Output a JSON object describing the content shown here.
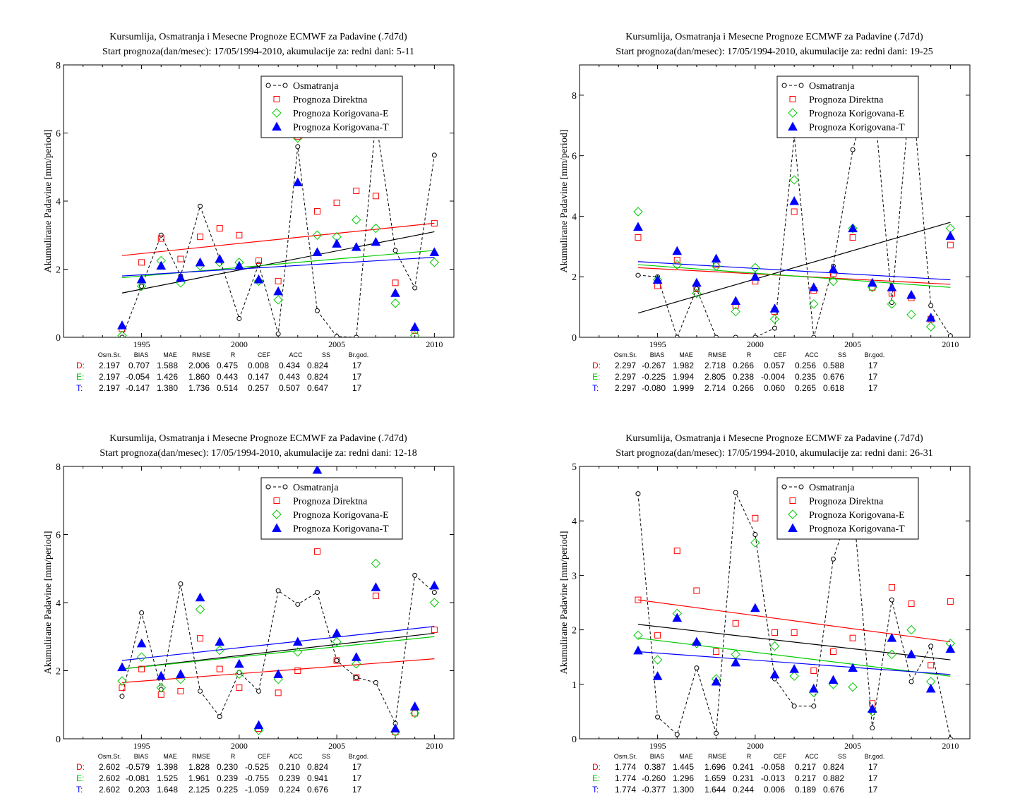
{
  "colors": {
    "obs": "#000000",
    "direct": "#ff0000",
    "corr_e": "#00cc00",
    "corr_t": "#0000ff"
  },
  "legend": {
    "obs": "Osmatranja",
    "direct": "Prognoza Direktna",
    "corr_e": "Prognoza Korigovana-E",
    "corr_t": "Prognoza Korigovana-T"
  },
  "stats_header": [
    "Osm.Sr.",
    "BIAS",
    "MAE",
    "RMSE",
    "R",
    "CEF",
    "ACC",
    "SS",
    "Br.god."
  ],
  "chart_data": [
    {
      "type": "scatter",
      "title": "Kursumlija, Osmatranja i Mesecne Prognoze ECMWF za Padavine (.7d7d)",
      "subtitle": "Start prognoza(dan/mesec): 17/05/1994-2010, akumulacije za: redni dani: 5-11",
      "ylabel": "Akumulirane Padavine [mm/period]",
      "xlim": [
        1991,
        2011
      ],
      "ylim": [
        0,
        8
      ],
      "xticks": [
        1995,
        2000,
        2005,
        2010
      ],
      "yticks": [
        0,
        2,
        4,
        6,
        8
      ],
      "legend": "top-right",
      "x": [
        1994,
        1995,
        1996,
        1997,
        1998,
        1999,
        2000,
        2001,
        2002,
        2003,
        2004,
        2005,
        2006,
        2007,
        2008,
        2009,
        2010
      ],
      "series": [
        {
          "name": "Osmatranja",
          "values": [
            0.0,
            1.5,
            3.0,
            1.8,
            3.85,
            2.3,
            0.55,
            2.15,
            0.1,
            5.6,
            0.78,
            0.02,
            0.0,
            6.4,
            2.55,
            1.45,
            5.35
          ]
        },
        {
          "name": "Prognoza Direktna",
          "values": [
            0.25,
            2.2,
            2.9,
            2.3,
            2.95,
            3.2,
            3.0,
            2.25,
            1.65,
            5.9,
            3.7,
            3.95,
            4.3,
            4.15,
            1.6,
            0.2,
            3.35
          ]
        },
        {
          "name": "Prognoza Korigovana-E",
          "values": [
            0.05,
            1.5,
            2.25,
            1.6,
            2.1,
            2.2,
            2.2,
            1.65,
            1.1,
            5.85,
            3.0,
            2.95,
            3.45,
            3.2,
            1.0,
            0.05,
            2.2
          ]
        },
        {
          "name": "Prognoza Korigovana-T",
          "values": [
            0.35,
            1.7,
            2.1,
            1.75,
            2.2,
            2.3,
            2.1,
            1.7,
            1.35,
            4.55,
            2.5,
            2.75,
            2.65,
            2.8,
            1.3,
            0.3,
            2.5
          ]
        }
      ],
      "trends": [
        [
          1.3,
          3.1
        ],
        [
          2.4,
          3.35
        ],
        [
          1.75,
          2.55
        ],
        [
          1.8,
          2.35
        ]
      ],
      "stats": [
        {
          "label": "D:",
          "values": [
            "2.197",
            "0.707",
            "1.588",
            "2.006",
            "0.475",
            "0.008",
            "0.434",
            "0.824",
            "17"
          ]
        },
        {
          "label": "E:",
          "values": [
            "2.197",
            "-0.054",
            "1.426",
            "1.860",
            "0.443",
            "0.147",
            "0.443",
            "0.824",
            "17"
          ]
        },
        {
          "label": "T:",
          "values": [
            "2.197",
            "-0.147",
            "1.380",
            "1.736",
            "0.514",
            "0.257",
            "0.507",
            "0.647",
            "17"
          ]
        }
      ]
    },
    {
      "type": "scatter",
      "title": "Kursumlija, Osmatranja i Mesecne Prognoze ECMWF za Padavine (.7d7d)",
      "subtitle": "Start prognoza(dan/mesec): 17/05/1994-2010, akumulacije za: redni dani: 19-25",
      "ylabel": "Akumulirane Padavine [mm/period]",
      "xlim": [
        1991,
        2011
      ],
      "ylim": [
        0,
        9
      ],
      "xticks": [
        1995,
        2000,
        2005,
        2010
      ],
      "yticks": [
        0,
        2,
        4,
        6,
        8
      ],
      "legend": "top-right",
      "x": [
        1994,
        1995,
        1996,
        1997,
        1998,
        1999,
        2000,
        2001,
        2002,
        2003,
        2004,
        2005,
        2006,
        2007,
        2008,
        2009,
        2010
      ],
      "series": [
        {
          "name": "Osmatranja",
          "values": [
            2.05,
            2.0,
            0.0,
            1.6,
            0.0,
            0.0,
            0.0,
            0.3,
            6.65,
            0.0,
            2.35,
            6.2,
            8.5,
            1.15,
            8.5,
            1.05,
            0.05
          ]
        },
        {
          "name": "Prognoza Direktna",
          "values": [
            3.3,
            1.7,
            2.55,
            1.6,
            2.4,
            1.05,
            1.85,
            0.85,
            4.15,
            1.55,
            2.1,
            3.3,
            1.65,
            1.45,
            1.3,
            0.6,
            3.05
          ]
        },
        {
          "name": "Prognoza Korigovana-E",
          "values": [
            4.15,
            1.9,
            2.4,
            1.45,
            2.35,
            0.85,
            2.3,
            0.6,
            5.2,
            1.1,
            1.85,
            3.6,
            1.65,
            1.1,
            0.75,
            0.35,
            3.6
          ]
        },
        {
          "name": "Prognoza Korigovana-T",
          "values": [
            3.65,
            1.9,
            2.85,
            1.8,
            2.6,
            1.2,
            2.0,
            0.95,
            4.5,
            1.65,
            2.25,
            3.6,
            1.8,
            1.65,
            1.4,
            0.65,
            3.35
          ]
        }
      ],
      "trends": [
        [
          0.8,
          3.8
        ],
        [
          2.3,
          1.75
        ],
        [
          2.4,
          1.65
        ],
        [
          2.5,
          1.9
        ]
      ],
      "stats": [
        {
          "label": "D:",
          "values": [
            "2.297",
            "-0.267",
            "1.982",
            "2.718",
            "0.266",
            "0.057",
            "0.256",
            "0.588",
            "17"
          ]
        },
        {
          "label": "E:",
          "values": [
            "2.297",
            "-0.225",
            "1.994",
            "2.805",
            "0.238",
            "-0.004",
            "0.235",
            "0.676",
            "17"
          ]
        },
        {
          "label": "T:",
          "values": [
            "2.297",
            "-0.080",
            "1.999",
            "2.714",
            "0.266",
            "0.060",
            "0.265",
            "0.618",
            "17"
          ]
        }
      ]
    },
    {
      "type": "scatter",
      "title": "Kursumlija, Osmatranja i Mesecne Prognoze ECMWF za Padavine (.7d7d)",
      "subtitle": "Start prognoza(dan/mesec): 17/05/1994-2010, akumulacije za: redni dani: 12-18",
      "ylabel": "Akumulirane Padavine [mm/period]",
      "xlim": [
        1991,
        2011
      ],
      "ylim": [
        0,
        8
      ],
      "xticks": [
        1995,
        2000,
        2005,
        2010
      ],
      "yticks": [
        0,
        2,
        4,
        6,
        8
      ],
      "legend": "top-right",
      "x": [
        1994,
        1995,
        1996,
        1997,
        1998,
        1999,
        2000,
        2001,
        2002,
        2003,
        2004,
        2005,
        2006,
        2007,
        2008,
        2009,
        2010
      ],
      "series": [
        {
          "name": "Osmatranja",
          "values": [
            1.25,
            3.7,
            1.45,
            4.55,
            1.4,
            0.65,
            1.95,
            1.4,
            4.35,
            3.95,
            4.3,
            2.3,
            1.8,
            1.65,
            0.45,
            4.8,
            4.3
          ]
        },
        {
          "name": "Prognoza Direktna",
          "values": [
            1.5,
            2.05,
            1.3,
            1.4,
            2.95,
            2.05,
            1.5,
            0.3,
            1.35,
            2.0,
            5.5,
            2.3,
            1.8,
            4.2,
            0.2,
            0.75,
            3.2
          ]
        },
        {
          "name": "Prognoza Korigovana-E",
          "values": [
            1.7,
            2.4,
            1.5,
            1.75,
            3.8,
            2.6,
            1.9,
            0.25,
            1.75,
            2.55,
            8.1,
            2.85,
            2.2,
            5.15,
            0.2,
            0.75,
            4.0
          ]
        },
        {
          "name": "Prognoza Korigovana-T",
          "values": [
            2.1,
            2.8,
            1.85,
            1.9,
            4.15,
            2.85,
            2.2,
            0.4,
            1.9,
            2.85,
            7.9,
            3.1,
            2.4,
            4.45,
            0.3,
            0.95,
            4.5
          ]
        }
      ],
      "trends": [
        [
          2.05,
          3.1
        ],
        [
          1.65,
          2.35
        ],
        [
          2.05,
          3.0
        ],
        [
          2.3,
          3.3
        ]
      ],
      "stats": [
        {
          "label": "D:",
          "values": [
            "2.602",
            "-0.579",
            "1.398",
            "1.828",
            "0.230",
            "-0.525",
            "0.210",
            "0.824",
            "17"
          ]
        },
        {
          "label": "E:",
          "values": [
            "2.602",
            "-0.081",
            "1.525",
            "1.961",
            "0.239",
            "-0.755",
            "0.239",
            "0.941",
            "17"
          ]
        },
        {
          "label": "T:",
          "values": [
            "2.602",
            "0.203",
            "1.648",
            "2.125",
            "0.225",
            "-1.059",
            "0.224",
            "0.676",
            "17"
          ]
        }
      ]
    },
    {
      "type": "scatter",
      "title": "Kursumlija, Osmatranja i Mesecne Prognoze ECMWF za Padavine (.7d7d)",
      "subtitle": "Start prognoza(dan/mesec): 17/05/1994-2010, akumulacije za: redni dani: 26-31",
      "ylabel": "Akumulirane Padavine [mm/period]",
      "xlim": [
        1991,
        2011
      ],
      "ylim": [
        0,
        5
      ],
      "xticks": [
        1995,
        2000,
        2005,
        2010
      ],
      "yticks": [
        0,
        1,
        2,
        3,
        4,
        5
      ],
      "legend": "top-right",
      "x": [
        1994,
        1995,
        1996,
        1997,
        1998,
        1999,
        2000,
        2001,
        2002,
        2003,
        2004,
        2005,
        2006,
        2007,
        2008,
        2009,
        2010
      ],
      "series": [
        {
          "name": "Osmatranja",
          "values": [
            4.5,
            0.4,
            0.08,
            1.3,
            0.1,
            4.52,
            3.75,
            1.1,
            0.6,
            0.6,
            3.3,
            4.4,
            0.2,
            2.55,
            1.05,
            1.7,
            0.0
          ]
        },
        {
          "name": "Prognoza Direktna",
          "values": [
            2.55,
            1.9,
            3.45,
            2.72,
            1.6,
            2.12,
            4.05,
            1.95,
            1.95,
            1.25,
            1.6,
            1.85,
            0.65,
            2.78,
            2.48,
            1.35,
            2.52
          ]
        },
        {
          "name": "Prognoza Korigovana-E",
          "values": [
            1.9,
            1.45,
            2.3,
            1.75,
            1.1,
            1.55,
            3.6,
            1.7,
            1.15,
            0.85,
            1.0,
            0.95,
            0.5,
            1.55,
            2.0,
            1.05,
            1.75
          ]
        },
        {
          "name": "Prognoza Korigovana-T",
          "values": [
            1.62,
            1.15,
            2.22,
            1.78,
            1.05,
            1.4,
            2.4,
            1.18,
            1.28,
            0.92,
            1.08,
            1.3,
            0.55,
            1.85,
            1.55,
            0.92,
            1.65
          ]
        }
      ],
      "trends": [
        [
          2.1,
          1.45
        ],
        [
          2.55,
          1.78
        ],
        [
          1.85,
          1.15
        ],
        [
          1.6,
          1.18
        ]
      ],
      "stats": [
        {
          "label": "D:",
          "values": [
            "1.774",
            "0.387",
            "1.445",
            "1.696",
            "0.241",
            "-0.058",
            "0.217",
            "0.824",
            "17"
          ]
        },
        {
          "label": "E:",
          "values": [
            "1.774",
            "-0.260",
            "1.296",
            "1.659",
            "0.231",
            "-0.013",
            "0.217",
            "0.882",
            "17"
          ]
        },
        {
          "label": "T:",
          "values": [
            "1.774",
            "-0.377",
            "1.300",
            "1.644",
            "0.244",
            "0.006",
            "0.189",
            "0.676",
            "17"
          ]
        }
      ]
    }
  ]
}
